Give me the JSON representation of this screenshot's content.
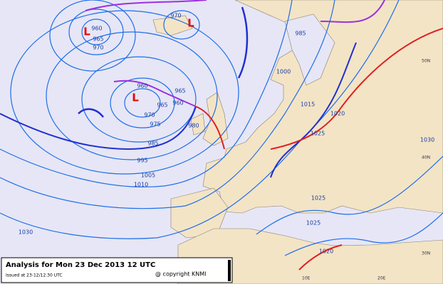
{
  "title": "Analysis for Mon 23 Dec 2013 12 UTC",
  "issued": "Issued at 23-12/12.30 UTC",
  "copyright": "@ copyright KNMI",
  "pressure_centers": [
    "L",
    "L",
    "L"
  ],
  "isobar_labels": [
    "960",
    "965",
    "970",
    "970",
    "985",
    "960",
    "965",
    "960",
    "965",
    "970",
    "975",
    "980",
    "985",
    "995",
    "1005",
    "1010",
    "1000",
    "1015",
    "1020",
    "1025",
    "1030",
    "1030",
    "1025",
    "1025",
    "1020"
  ],
  "grid_labels": [
    "50N",
    "40N",
    "30N",
    "10E",
    "20E"
  ]
}
